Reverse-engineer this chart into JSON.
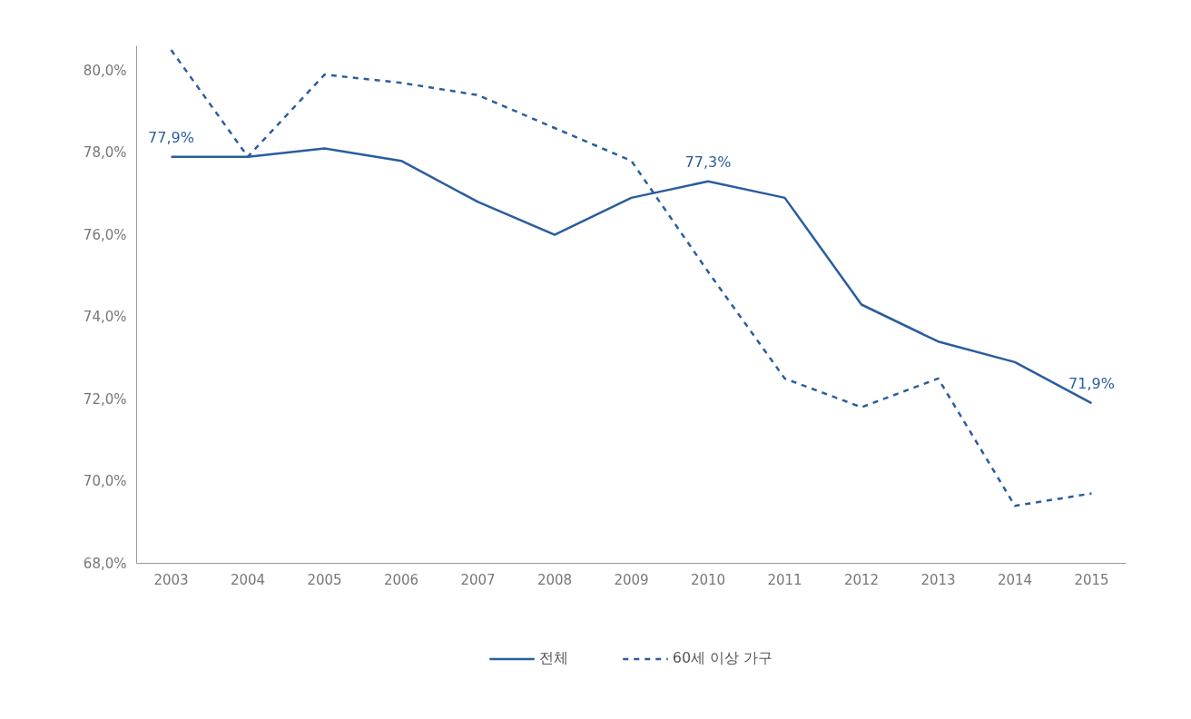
{
  "chart_data": {
    "type": "line",
    "categories": [
      "2003",
      "2004",
      "2005",
      "2006",
      "2007",
      "2008",
      "2009",
      "2010",
      "2011",
      "2012",
      "2013",
      "2014",
      "2015"
    ],
    "series": [
      {
        "name": "전체",
        "color": "#2a5d9f",
        "line_style": "solid",
        "values": [
          77.9,
          77.9,
          78.1,
          77.8,
          76.8,
          76.0,
          76.9,
          77.3,
          76.9,
          74.3,
          73.4,
          72.9,
          71.9
        ]
      },
      {
        "name": "60세 이상 가구",
        "color": "#2a5d9f",
        "line_style": "dashed",
        "values": [
          80.5,
          77.9,
          79.9,
          79.7,
          79.4,
          78.6,
          77.8,
          75.1,
          72.5,
          71.8,
          72.5,
          69.4,
          69.7
        ]
      }
    ],
    "ylim": [
      68,
      80.6
    ],
    "yticks": [
      {
        "value": 68,
        "label": "68,0%"
      },
      {
        "value": 70,
        "label": "70,0%"
      },
      {
        "value": 72,
        "label": "72,0%"
      },
      {
        "value": 74,
        "label": "74,0%"
      },
      {
        "value": 76,
        "label": "76,0%"
      },
      {
        "value": 78,
        "label": "78,0%"
      },
      {
        "value": 80,
        "label": "80,0%"
      }
    ],
    "annotations": [
      {
        "text": "77,9%",
        "x": "2003",
        "y": 77.9
      },
      {
        "text": "77,3%",
        "x": "2010",
        "y": 77.3
      },
      {
        "text": "71,9%",
        "x": "2015",
        "y": 71.9
      }
    ],
    "grid": false,
    "legend": "bottom",
    "marker": "none"
  }
}
